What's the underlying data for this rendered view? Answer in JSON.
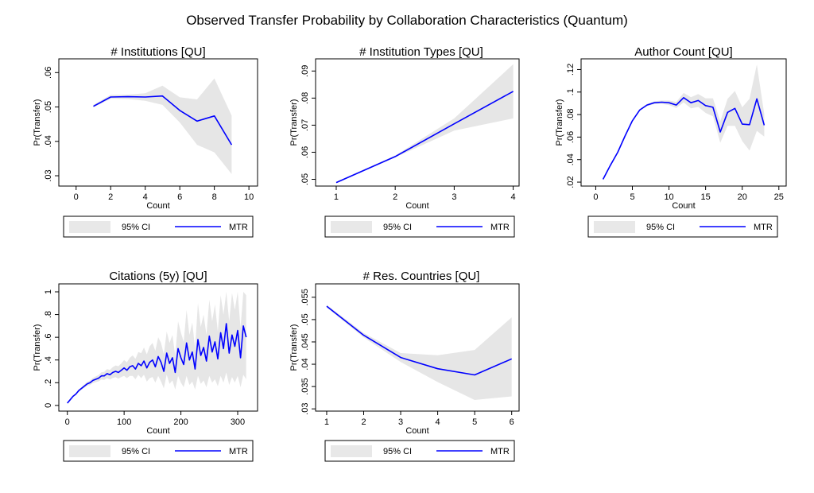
{
  "figure": {
    "title": "Observed Transfer Probability by Collaboration Characteristics (Quantum)"
  },
  "colors": {
    "line": "#0000ff",
    "band": "#e6e6e6",
    "band_legend": "#e8e8e8",
    "axis": "#000000"
  },
  "legend": {
    "ci_label": "95% CI",
    "line_label": "MTR"
  },
  "chart_data": [
    {
      "type": "line",
      "title": "# Institutions [QU]",
      "xlabel": "Count",
      "ylabel": "Pr(Transfer)",
      "xlim": [
        -1,
        10.5
      ],
      "ylim": [
        0.027,
        0.064
      ],
      "xticks": [
        0,
        2,
        4,
        6,
        8,
        10
      ],
      "xtick_labels": [
        "0",
        "2",
        "4",
        "6",
        "8",
        "10"
      ],
      "yticks": [
        0.03,
        0.04,
        0.05,
        0.06
      ],
      "ytick_labels": [
        ".03",
        ".04",
        ".05",
        ".06"
      ],
      "x": [
        1,
        2,
        3,
        4,
        5,
        6,
        7,
        8,
        9
      ],
      "series": [
        {
          "name": "MTR",
          "values": [
            0.0502,
            0.0529,
            0.053,
            0.0529,
            0.0532,
            0.049,
            0.0459,
            0.0474,
            0.039
          ]
        },
        {
          "name": "95% CI",
          "lower": [
            0.0499,
            0.0524,
            0.0523,
            0.0518,
            0.0506,
            0.0455,
            0.039,
            0.0368,
            0.0305
          ],
          "upper": [
            0.0506,
            0.0535,
            0.0536,
            0.054,
            0.0562,
            0.0528,
            0.0522,
            0.0583,
            0.0475
          ]
        }
      ]
    },
    {
      "type": "line",
      "title": "# Institution Types [QU]",
      "xlabel": "Count",
      "ylabel": "Pr(Transfer)",
      "xlim": [
        0.65,
        4.1
      ],
      "ylim": [
        0.0475,
        0.0945
      ],
      "xticks": [
        1,
        2,
        3,
        4
      ],
      "xtick_labels": [
        "1",
        "2",
        "3",
        "4"
      ],
      "yticks": [
        0.05,
        0.06,
        0.07,
        0.08,
        0.09
      ],
      "ytick_labels": [
        ".05",
        ".06",
        ".07",
        ".08",
        ".09"
      ],
      "x": [
        1,
        2,
        3,
        4
      ],
      "series": [
        {
          "name": "MTR",
          "values": [
            0.0488,
            0.0584,
            0.0705,
            0.0825
          ]
        },
        {
          "name": "95% CI",
          "lower": [
            0.0486,
            0.0581,
            0.068,
            0.0725
          ],
          "upper": [
            0.0491,
            0.0588,
            0.0725,
            0.0925
          ]
        }
      ]
    },
    {
      "type": "line",
      "title": "Author Count [QU]",
      "xlabel": "Count",
      "ylabel": "Pr(Transfer)",
      "xlim": [
        -2,
        26
      ],
      "ylim": [
        0.0165,
        0.1295
      ],
      "xticks": [
        0,
        5,
        10,
        15,
        20,
        25
      ],
      "xtick_labels": [
        "0",
        "5",
        "10",
        "15",
        "20",
        "25"
      ],
      "yticks": [
        0.02,
        0.04,
        0.06,
        0.08,
        0.1,
        0.12
      ],
      "ytick_labels": [
        ".02",
        ".04",
        ".06",
        ".08",
        ".1",
        ".12"
      ],
      "x": [
        1,
        2,
        3,
        4,
        5,
        6,
        7,
        8,
        9,
        10,
        11,
        12,
        13,
        14,
        15,
        16,
        17,
        18,
        19,
        20,
        21,
        22,
        23
      ],
      "series": [
        {
          "name": "MTR",
          "values": [
            0.0225,
            0.035,
            0.0465,
            0.061,
            0.0745,
            0.084,
            0.0885,
            0.0905,
            0.091,
            0.0905,
            0.0885,
            0.095,
            0.0905,
            0.0925,
            0.088,
            0.0865,
            0.0645,
            0.082,
            0.0855,
            0.0715,
            0.071,
            0.094,
            0.0705
          ]
        },
        {
          "name": "95% CI",
          "lower": [
            0.0222,
            0.0346,
            0.046,
            0.0604,
            0.0738,
            0.0832,
            0.0875,
            0.0893,
            0.0895,
            0.0885,
            0.0858,
            0.0908,
            0.0856,
            0.0868,
            0.0815,
            0.0785,
            0.055,
            0.07,
            0.07,
            0.0565,
            0.048,
            0.0655,
            0.0605
          ],
          "upper": [
            0.0228,
            0.0354,
            0.047,
            0.0616,
            0.0752,
            0.0848,
            0.0895,
            0.0917,
            0.0925,
            0.0925,
            0.0912,
            0.0992,
            0.0954,
            0.0982,
            0.0945,
            0.0945,
            0.074,
            0.094,
            0.101,
            0.0865,
            0.094,
            0.1245,
            0.0805
          ]
        }
      ]
    },
    {
      "type": "line",
      "title": "Citations (5y) [QU]",
      "xlabel": "Count",
      "ylabel": "Pr(Transfer)",
      "xlim": [
        -15,
        335
      ],
      "ylim": [
        -0.05,
        1.07
      ],
      "xticks": [
        0,
        100,
        200,
        300
      ],
      "xtick_labels": [
        "0",
        "100",
        "200",
        "300"
      ],
      "yticks": [
        0,
        0.2,
        0.4,
        0.6,
        0.8,
        1
      ],
      "ytick_labels": [
        "0",
        ".2",
        ".4",
        ".6",
        ".8",
        "1"
      ],
      "x": [
        0,
        5,
        10,
        15,
        20,
        25,
        30,
        35,
        40,
        45,
        50,
        55,
        60,
        65,
        70,
        75,
        80,
        85,
        90,
        95,
        100,
        105,
        110,
        115,
        120,
        125,
        130,
        135,
        140,
        145,
        150,
        155,
        160,
        165,
        170,
        175,
        180,
        185,
        190,
        195,
        200,
        205,
        210,
        215,
        220,
        225,
        230,
        235,
        240,
        245,
        250,
        255,
        260,
        265,
        270,
        275,
        280,
        285,
        290,
        295,
        300,
        305,
        310,
        315
      ],
      "series": [
        {
          "name": "MTR",
          "values": [
            0.02,
            0.05,
            0.08,
            0.1,
            0.13,
            0.15,
            0.17,
            0.19,
            0.2,
            0.22,
            0.23,
            0.24,
            0.26,
            0.26,
            0.28,
            0.27,
            0.29,
            0.3,
            0.29,
            0.31,
            0.33,
            0.31,
            0.34,
            0.35,
            0.32,
            0.37,
            0.35,
            0.39,
            0.33,
            0.38,
            0.4,
            0.34,
            0.43,
            0.38,
            0.3,
            0.46,
            0.37,
            0.42,
            0.29,
            0.5,
            0.42,
            0.36,
            0.55,
            0.4,
            0.47,
            0.32,
            0.58,
            0.44,
            0.51,
            0.39,
            0.61,
            0.47,
            0.56,
            0.41,
            0.64,
            0.5,
            0.72,
            0.46,
            0.62,
            0.52,
            0.66,
            0.42,
            0.7,
            0.6
          ]
        },
        {
          "name": "95% CI",
          "lower": [
            0.015,
            0.044,
            0.073,
            0.092,
            0.12,
            0.138,
            0.155,
            0.173,
            0.18,
            0.198,
            0.205,
            0.212,
            0.228,
            0.225,
            0.24,
            0.228,
            0.242,
            0.248,
            0.235,
            0.25,
            0.26,
            0.24,
            0.26,
            0.26,
            0.23,
            0.27,
            0.24,
            0.27,
            0.21,
            0.24,
            0.25,
            0.2,
            0.26,
            0.21,
            0.15,
            0.27,
            0.19,
            0.22,
            0.14,
            0.26,
            0.2,
            0.16,
            0.26,
            0.18,
            0.21,
            0.14,
            0.26,
            0.19,
            0.22,
            0.16,
            0.26,
            0.2,
            0.23,
            0.17,
            0.26,
            0.2,
            0.29,
            0.18,
            0.25,
            0.2,
            0.26,
            0.16,
            0.27,
            0.23
          ],
          "upper": [
            0.025,
            0.056,
            0.087,
            0.108,
            0.14,
            0.162,
            0.185,
            0.207,
            0.22,
            0.242,
            0.255,
            0.268,
            0.292,
            0.295,
            0.32,
            0.312,
            0.338,
            0.352,
            0.345,
            0.37,
            0.4,
            0.38,
            0.42,
            0.44,
            0.41,
            0.47,
            0.46,
            0.51,
            0.45,
            0.52,
            0.55,
            0.48,
            0.6,
            0.55,
            0.45,
            0.65,
            0.55,
            0.62,
            0.44,
            0.74,
            0.64,
            0.56,
            0.84,
            0.62,
            0.73,
            0.5,
            0.9,
            0.69,
            0.8,
            0.62,
            0.93,
            0.74,
            0.89,
            0.65,
            0.97,
            0.8,
            1.0,
            0.74,
            0.99,
            0.84,
            1.0,
            0.68,
            1.0,
            0.97
          ]
        }
      ]
    },
    {
      "type": "line",
      "title": "# Res. Countries [QU]",
      "xlabel": "Count",
      "ylabel": "Pr(Transfer)",
      "xlim": [
        0.7,
        6.2
      ],
      "ylim": [
        0.0295,
        0.058
      ],
      "xticks": [
        1,
        2,
        3,
        4,
        5,
        6
      ],
      "xtick_labels": [
        "1",
        "2",
        "3",
        "4",
        "5",
        "6"
      ],
      "yticks": [
        0.03,
        0.035,
        0.04,
        0.045,
        0.05,
        0.055
      ],
      "ytick_labels": [
        ".03",
        ".035",
        ".04",
        ".045",
        ".05",
        ".055"
      ],
      "x": [
        1,
        2,
        3,
        4,
        5,
        6
      ],
      "series": [
        {
          "name": "MTR",
          "values": [
            0.053,
            0.0465,
            0.0415,
            0.039,
            0.0376,
            0.0412
          ]
        },
        {
          "name": "95% CI",
          "lower": [
            0.0527,
            0.046,
            0.0405,
            0.036,
            0.032,
            0.0328
          ],
          "upper": [
            0.0533,
            0.047,
            0.0425,
            0.042,
            0.0432,
            0.0505
          ]
        }
      ]
    }
  ]
}
